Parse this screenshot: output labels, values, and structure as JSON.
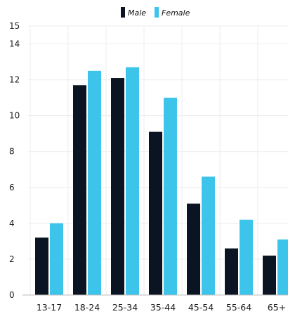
{
  "chart_data": {
    "type": "bar",
    "title": "",
    "xlabel": "",
    "ylabel": "",
    "categories": [
      "13-17",
      "18-24",
      "25-34",
      "35-44",
      "45-54",
      "55-64",
      "65+"
    ],
    "series": [
      {
        "name": "Male",
        "color": "#0b1423",
        "values": [
          3.2,
          11.7,
          12.1,
          9.1,
          5.1,
          2.6,
          2.2
        ]
      },
      {
        "name": "Female",
        "color": "#3cc4ea",
        "values": [
          4.0,
          12.5,
          12.7,
          11.0,
          6.6,
          4.2,
          3.1
        ]
      }
    ],
    "ylim": [
      0,
      15
    ],
    "yticks": [
      0,
      2,
      4,
      6,
      8,
      10,
      12,
      14,
      15
    ],
    "grid": true,
    "legend_position": "top-center"
  },
  "colors": {
    "grid": "#ececec",
    "axis": "#bdbdbd"
  }
}
